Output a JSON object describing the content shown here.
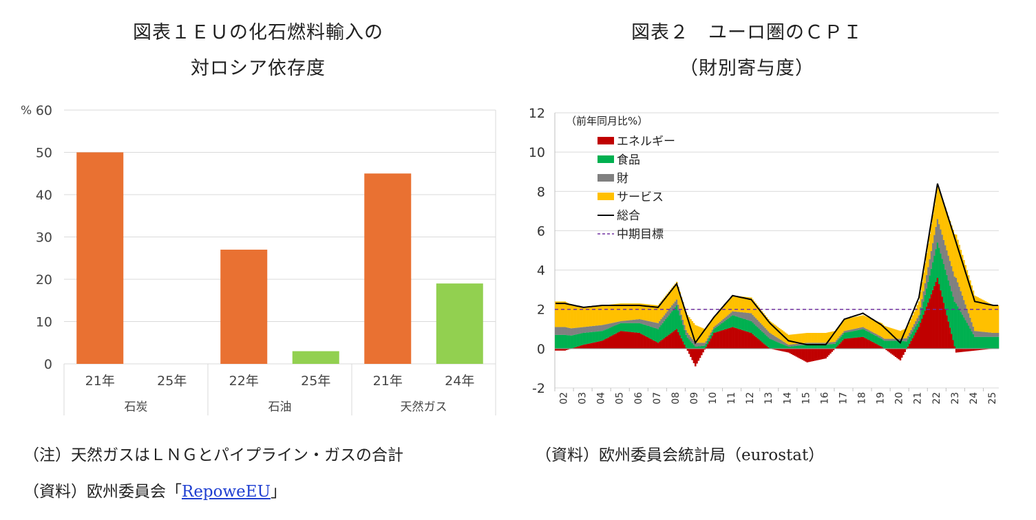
{
  "left_title": [
    "図表１ＥＵの化石燃料輸入の",
    "対ロシア依存度"
  ],
  "right_title": [
    "図表２　ユーロ圏のＣＰＩ",
    "（財別寄与度）"
  ],
  "left_notes": {
    "note1": "（注）天然ガスはＬＮＧとパイプライン・ガスの合計",
    "source_prefix": "（資料）欧州委員会「",
    "source_link": "RepoweEU",
    "source_suffix": "」"
  },
  "right_notes": {
    "source": "（資料）欧州委員会統計局（eurostat）"
  },
  "colors": {
    "bar_2021": "#E97132",
    "bar_recent": "#92D050",
    "energy": "#C00000",
    "food": "#00B050",
    "goods": "#808080",
    "services": "#FFC000",
    "total": "#000000",
    "target": "#7030A0"
  },
  "chart_data": [
    {
      "type": "bar",
      "y_unit": "%",
      "ylim": [
        0,
        60
      ],
      "yticks": [
        "0",
        "10",
        "20",
        "30",
        "40",
        "50",
        "60"
      ],
      "groups": [
        {
          "label": "石炭",
          "bars": [
            {
              "x": "21年",
              "value": 50
            },
            {
              "x": "25年",
              "value": 0
            }
          ]
        },
        {
          "label": "石油",
          "bars": [
            {
              "x": "22年",
              "value": 27
            },
            {
              "x": "25年",
              "value": 3
            }
          ]
        },
        {
          "label": "天然ガス",
          "bars": [
            {
              "x": "21年",
              "value": 45
            },
            {
              "x": "24年",
              "value": 19
            }
          ]
        }
      ],
      "grid": true
    },
    {
      "type": "area",
      "ylabel": "（前年同月比%）",
      "ylim": [
        -2,
        12
      ],
      "yticks": [
        "-2",
        "0",
        "2",
        "4",
        "6",
        "8",
        "10",
        "12"
      ],
      "x_labels": [
        "02",
        "03",
        "04",
        "05",
        "06",
        "07",
        "08",
        "09",
        "10",
        "11",
        "12",
        "13",
        "14",
        "15",
        "16",
        "17",
        "18",
        "19",
        "20",
        "21",
        "22",
        "23",
        "24",
        "25"
      ],
      "x_start_year": 2002,
      "legend": [
        "エネルギー",
        "食品",
        "財",
        "サービス",
        "総合",
        "中期目標"
      ],
      "legend_position": "top-left",
      "target": 2,
      "annual": [
        {
          "year": "2002",
          "energy": -0.1,
          "food": 0.7,
          "goods": 0.4,
          "services": 1.3,
          "total": 2.3
        },
        {
          "year": "2003",
          "energy": 0.2,
          "food": 0.6,
          "goods": 0.3,
          "services": 1.0,
          "total": 2.1
        },
        {
          "year": "2004",
          "energy": 0.4,
          "food": 0.5,
          "goods": 0.3,
          "services": 1.0,
          "total": 2.2
        },
        {
          "year": "2005",
          "energy": 0.9,
          "food": 0.4,
          "goods": 0.1,
          "services": 0.9,
          "total": 2.2
        },
        {
          "year": "2006",
          "energy": 0.8,
          "food": 0.5,
          "goods": 0.2,
          "services": 0.8,
          "total": 2.2
        },
        {
          "year": "2007",
          "energy": 0.3,
          "food": 0.7,
          "goods": 0.3,
          "services": 0.9,
          "total": 2.1
        },
        {
          "year": "2008",
          "energy": 1.0,
          "food": 1.2,
          "goods": 0.3,
          "services": 0.9,
          "total": 3.3
        },
        {
          "year": "2009",
          "energy": -0.9,
          "food": 0.1,
          "goods": 0.2,
          "services": 0.9,
          "total": 0.3
        },
        {
          "year": "2010",
          "energy": 0.8,
          "food": 0.2,
          "goods": 0.1,
          "services": 0.5,
          "total": 1.6
        },
        {
          "year": "2011",
          "energy": 1.1,
          "food": 0.6,
          "goods": 0.2,
          "services": 0.8,
          "total": 2.7
        },
        {
          "year": "2012",
          "energy": 0.8,
          "food": 0.6,
          "goods": 0.4,
          "services": 0.8,
          "total": 2.5
        },
        {
          "year": "2013",
          "energy": 0.0,
          "food": 0.5,
          "goods": 0.3,
          "services": 0.6,
          "total": 1.3
        },
        {
          "year": "2014",
          "energy": -0.2,
          "food": 0.1,
          "goods": 0.1,
          "services": 0.5,
          "total": 0.4
        },
        {
          "year": "2015",
          "energy": -0.7,
          "food": 0.2,
          "goods": 0.1,
          "services": 0.5,
          "total": 0.2
        },
        {
          "year": "2016",
          "energy": -0.5,
          "food": 0.2,
          "goods": 0.1,
          "services": 0.5,
          "total": 0.2
        },
        {
          "year": "2017",
          "energy": 0.5,
          "food": 0.3,
          "goods": 0.1,
          "services": 0.6,
          "total": 1.5
        },
        {
          "year": "2018",
          "energy": 0.6,
          "food": 0.4,
          "goods": 0.1,
          "services": 0.6,
          "total": 1.8
        },
        {
          "year": "2019",
          "energy": 0.1,
          "food": 0.4,
          "goods": 0.1,
          "services": 0.7,
          "total": 1.2
        },
        {
          "year": "2020",
          "energy": -0.6,
          "food": 0.4,
          "goods": 0.1,
          "services": 0.4,
          "total": 0.3
        },
        {
          "year": "2021",
          "energy": 1.1,
          "food": 0.3,
          "goods": 0.3,
          "services": 0.7,
          "total": 2.6
        },
        {
          "year": "2022",
          "energy": 3.6,
          "food": 1.8,
          "goods": 1.2,
          "services": 1.7,
          "total": 8.4
        },
        {
          "year": "2023",
          "energy": -0.2,
          "food": 2.3,
          "goods": 1.3,
          "services": 2.2,
          "total": 5.4
        },
        {
          "year": "2024",
          "energy": -0.1,
          "food": 0.6,
          "goods": 0.3,
          "services": 1.8,
          "total": 2.4
        },
        {
          "year": "2025",
          "energy": 0.0,
          "food": 0.6,
          "goods": 0.2,
          "services": 1.4,
          "total": 2.2
        }
      ],
      "grid": true
    }
  ]
}
